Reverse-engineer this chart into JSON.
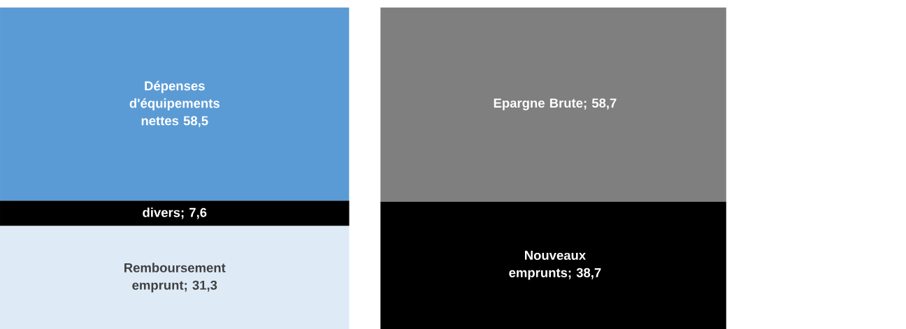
{
  "chart_data": {
    "type": "bar",
    "stacked": true,
    "categories": [
      null,
      null
    ],
    "series": [
      {
        "colors": [
          "#deebf7",
          "#000000"
        ],
        "values": [
          31.3,
          38.7
        ],
        "value_labels": [
          "Remboursement emprunt; 31,3",
          "Nouveaux emprunts; 38,7"
        ]
      },
      {
        "colors": [
          "#000000",
          "#7f7f7f"
        ],
        "values": [
          7.6,
          58.7
        ],
        "value_labels": [
          "divers; 7,6",
          "Epargne Brute; 58,7"
        ]
      },
      {
        "colors": [
          "#5b9bd5",
          null
        ],
        "values": [
          58.5,
          null
        ],
        "value_labels": [
          "Dépenses d'équipements nettes 58,5",
          null
        ]
      }
    ]
  }
}
